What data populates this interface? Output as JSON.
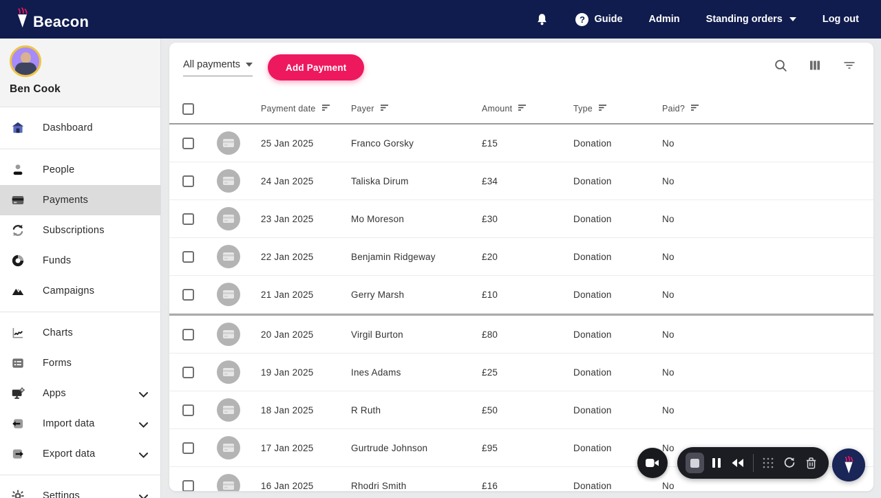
{
  "brand": {
    "name": "Beacon",
    "logo_icon": "torch-icon"
  },
  "top_nav": {
    "bell_icon": "notifications-bell-icon",
    "guide": {
      "icon": "help-question-icon",
      "label": "Guide"
    },
    "admin_label": "Admin",
    "standing_orders_label": "Standing orders",
    "log_out_label": "Log out"
  },
  "sidebar": {
    "user_name": "Ben Cook",
    "sections": [
      {
        "items": [
          {
            "id": "dashboard",
            "label": "Dashboard",
            "icon": "house-icon"
          }
        ]
      },
      {
        "items": [
          {
            "id": "people",
            "label": "People",
            "icon": "person-icon"
          },
          {
            "id": "payments",
            "label": "Payments",
            "icon": "credit-card-icon",
            "selected": true
          },
          {
            "id": "subscriptions",
            "label": "Subscriptions",
            "icon": "sync-arrows-icon"
          },
          {
            "id": "funds",
            "label": "Funds",
            "icon": "donut-chart-icon"
          },
          {
            "id": "campaigns",
            "label": "Campaigns",
            "icon": "mountains-icon"
          }
        ]
      },
      {
        "items": [
          {
            "id": "charts",
            "label": "Charts",
            "icon": "line-chart-icon"
          },
          {
            "id": "forms",
            "label": "Forms",
            "icon": "form-card-icon"
          },
          {
            "id": "apps",
            "label": "Apps",
            "icon": "monitor-gear-icon",
            "chevron": true
          },
          {
            "id": "import-data",
            "label": "Import data",
            "icon": "import-arrow-icon",
            "chevron": true
          },
          {
            "id": "export-data",
            "label": "Export data",
            "icon": "export-arrow-icon",
            "chevron": true
          }
        ]
      },
      {
        "items": [
          {
            "id": "settings",
            "label": "Settings",
            "icon": "gear-icon",
            "chevron": true
          }
        ]
      }
    ]
  },
  "toolbar": {
    "view_selector_value": "All payments",
    "add_payment_label": "Add Payment",
    "icons": [
      "search-icon",
      "columns-icon",
      "filter-icon"
    ]
  },
  "table": {
    "columns": [
      {
        "key": "date",
        "label": "Payment date",
        "sortable": true
      },
      {
        "key": "payer",
        "label": "Payer",
        "sortable": true
      },
      {
        "key": "amount",
        "label": "Amount",
        "sortable": true
      },
      {
        "key": "type",
        "label": "Type",
        "sortable": true
      },
      {
        "key": "paid",
        "label": "Paid?",
        "sortable": true
      }
    ],
    "rows": [
      {
        "date": "25 Jan 2025",
        "payer": "Franco Gorsky",
        "amount": "£15",
        "type": "Donation",
        "paid": "No"
      },
      {
        "date": "24 Jan 2025",
        "payer": "Taliska Dirum",
        "amount": "£34",
        "type": "Donation",
        "paid": "No"
      },
      {
        "date": "23 Jan 2025",
        "payer": "Mo Moreson",
        "amount": "£30",
        "type": "Donation",
        "paid": "No"
      },
      {
        "date": "22 Jan 2025",
        "payer": "Benjamin Ridgeway",
        "amount": "£20",
        "type": "Donation",
        "paid": "No"
      },
      {
        "date": "21 Jan 2025",
        "payer": "Gerry Marsh",
        "amount": "£10",
        "type": "Donation",
        "paid": "No",
        "group_end": true
      },
      {
        "date": "20 Jan 2025",
        "payer": "Virgil Burton",
        "amount": "£80",
        "type": "Donation",
        "paid": "No"
      },
      {
        "date": "19 Jan 2025",
        "payer": "Ines Adams",
        "amount": "£25",
        "type": "Donation",
        "paid": "No"
      },
      {
        "date": "18 Jan 2025",
        "payer": "R Ruth",
        "amount": "£50",
        "type": "Donation",
        "paid": "No"
      },
      {
        "date": "17 Jan 2025",
        "payer": "Gurtrude Johnson",
        "amount": "£95",
        "type": "Donation",
        "paid": "No"
      },
      {
        "date": "16 Jan 2025",
        "payer": "Rhodri Smith",
        "amount": "£16",
        "type": "Donation",
        "paid": "No"
      }
    ]
  },
  "floating_controls": {
    "camera_button_icon": "video-camera-icon",
    "pill_icons": [
      "stop-icon",
      "pause-icon",
      "rewind-icon",
      "dot-grid-icon",
      "restart-icon",
      "trash-icon"
    ],
    "brand_button_icon": "torch-icon"
  },
  "colors": {
    "brand_navy": "#101c4e",
    "brand_pink": "#ee185f",
    "page_bg": "#e9eaeb",
    "selected_item_bg": "#dcdcdc",
    "avatar_ring": "#edc545"
  }
}
